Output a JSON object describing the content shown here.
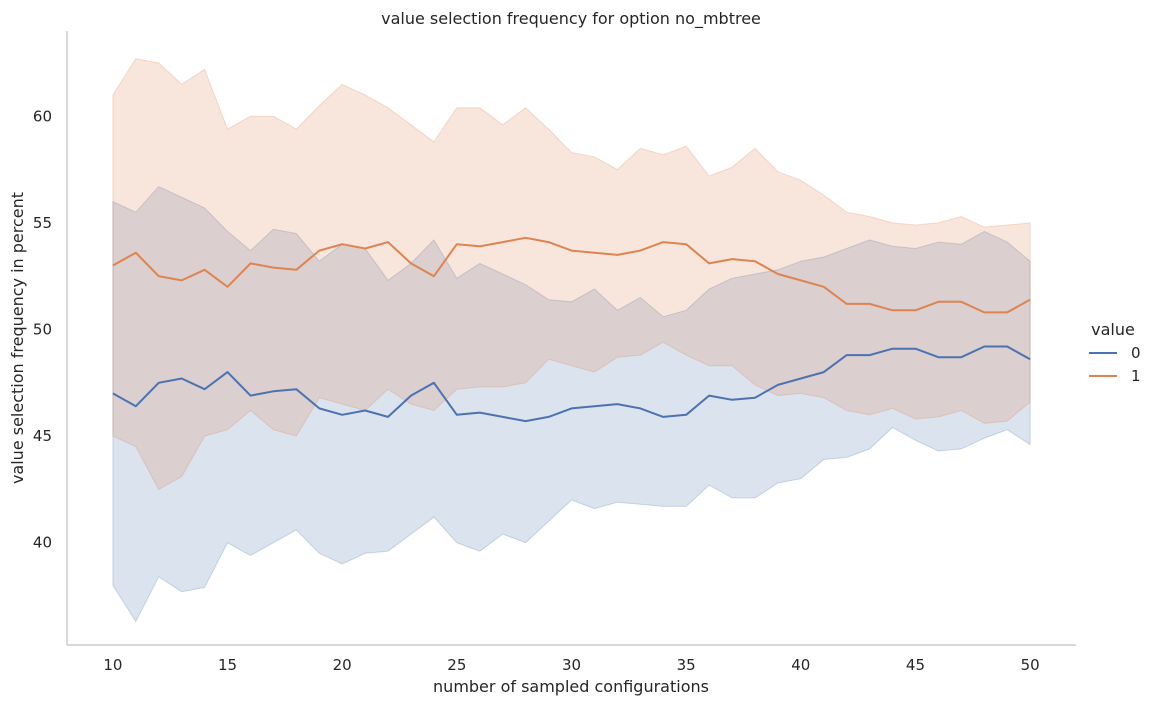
{
  "chart_data": {
    "type": "line",
    "title": "value selection frequency for option no_mbtree",
    "xlabel": "number of sampled configurations",
    "ylabel": "value selection frequency in percent",
    "xlim": [
      8,
      52
    ],
    "ylim": [
      35.2,
      64
    ],
    "xticks": [
      10,
      15,
      20,
      25,
      30,
      35,
      40,
      45,
      50
    ],
    "yticks": [
      40,
      45,
      50,
      55,
      60
    ],
    "grid": false,
    "legend": {
      "title": "value",
      "placement": "right"
    },
    "x": [
      10,
      11,
      12,
      13,
      14,
      15,
      16,
      17,
      18,
      19,
      20,
      21,
      22,
      23,
      24,
      25,
      26,
      27,
      28,
      29,
      30,
      31,
      32,
      33,
      34,
      35,
      36,
      37,
      38,
      39,
      40,
      41,
      42,
      43,
      44,
      45,
      46,
      47,
      48,
      49,
      50
    ],
    "series": [
      {
        "name": "0",
        "color": "#4c72b0",
        "values": [
          47.0,
          46.4,
          47.5,
          47.7,
          47.2,
          48.0,
          46.9,
          47.1,
          47.2,
          46.3,
          46.0,
          46.2,
          45.9,
          46.9,
          47.5,
          46.0,
          46.1,
          45.9,
          45.7,
          45.9,
          46.3,
          46.4,
          46.5,
          46.3,
          45.9,
          46.0,
          46.9,
          46.7,
          46.8,
          47.4,
          47.7,
          48.0,
          48.8,
          48.8,
          49.1,
          49.1,
          48.7,
          48.7,
          49.2,
          49.2,
          48.6
        ],
        "ci_low": [
          38.0,
          36.3,
          38.4,
          37.7,
          37.9,
          40.0,
          39.4,
          40.0,
          40.6,
          39.5,
          39.0,
          39.5,
          39.6,
          40.4,
          41.2,
          40.0,
          39.6,
          40.4,
          40.0,
          41.0,
          42.0,
          41.6,
          41.9,
          41.8,
          41.7,
          41.7,
          42.7,
          42.1,
          42.1,
          42.8,
          43.0,
          43.9,
          44.0,
          44.4,
          45.4,
          44.8,
          44.3,
          44.4,
          44.9,
          45.3,
          44.6
        ],
        "ci_high": [
          56.0,
          55.5,
          56.7,
          56.2,
          55.7,
          54.6,
          53.7,
          54.7,
          54.5,
          53.2,
          54.0,
          53.8,
          52.3,
          53.1,
          54.2,
          52.4,
          53.1,
          52.6,
          52.1,
          51.4,
          51.3,
          51.9,
          50.9,
          51.5,
          50.6,
          50.9,
          51.9,
          52.4,
          52.6,
          52.8,
          53.2,
          53.4,
          53.8,
          54.2,
          53.9,
          53.8,
          54.1,
          54.0,
          54.6,
          54.1,
          53.2
        ]
      },
      {
        "name": "1",
        "color": "#dd8452",
        "values": [
          53.0,
          53.6,
          52.5,
          52.3,
          52.8,
          52.0,
          53.1,
          52.9,
          52.8,
          53.7,
          54.0,
          53.8,
          54.1,
          53.1,
          52.5,
          54.0,
          53.9,
          54.1,
          54.3,
          54.1,
          53.7,
          53.6,
          53.5,
          53.7,
          54.1,
          54.0,
          53.1,
          53.3,
          53.2,
          52.6,
          52.3,
          52.0,
          51.2,
          51.2,
          50.9,
          50.9,
          51.3,
          51.3,
          50.8,
          50.8,
          51.4
        ],
        "ci_low": [
          45.0,
          44.5,
          42.5,
          43.1,
          45.0,
          45.3,
          46.2,
          45.3,
          45.0,
          46.8,
          46.5,
          46.2,
          47.2,
          46.5,
          46.2,
          47.2,
          47.3,
          47.3,
          47.5,
          48.6,
          48.3,
          48.0,
          48.7,
          48.8,
          49.4,
          48.8,
          48.3,
          48.3,
          47.4,
          46.9,
          47.0,
          46.8,
          46.2,
          46.0,
          46.3,
          45.8,
          45.9,
          46.2,
          45.6,
          45.7,
          46.6
        ],
        "ci_high": [
          61.0,
          62.7,
          62.5,
          61.5,
          62.2,
          59.4,
          60.0,
          60.0,
          59.4,
          60.5,
          61.5,
          61.0,
          60.4,
          59.6,
          58.8,
          60.4,
          60.4,
          59.6,
          60.4,
          59.4,
          58.3,
          58.1,
          57.5,
          58.5,
          58.2,
          58.6,
          57.2,
          57.6,
          58.5,
          57.4,
          57.0,
          56.3,
          55.5,
          55.3,
          55.0,
          54.9,
          55.0,
          55.3,
          54.8,
          54.9,
          55.0
        ]
      }
    ]
  }
}
